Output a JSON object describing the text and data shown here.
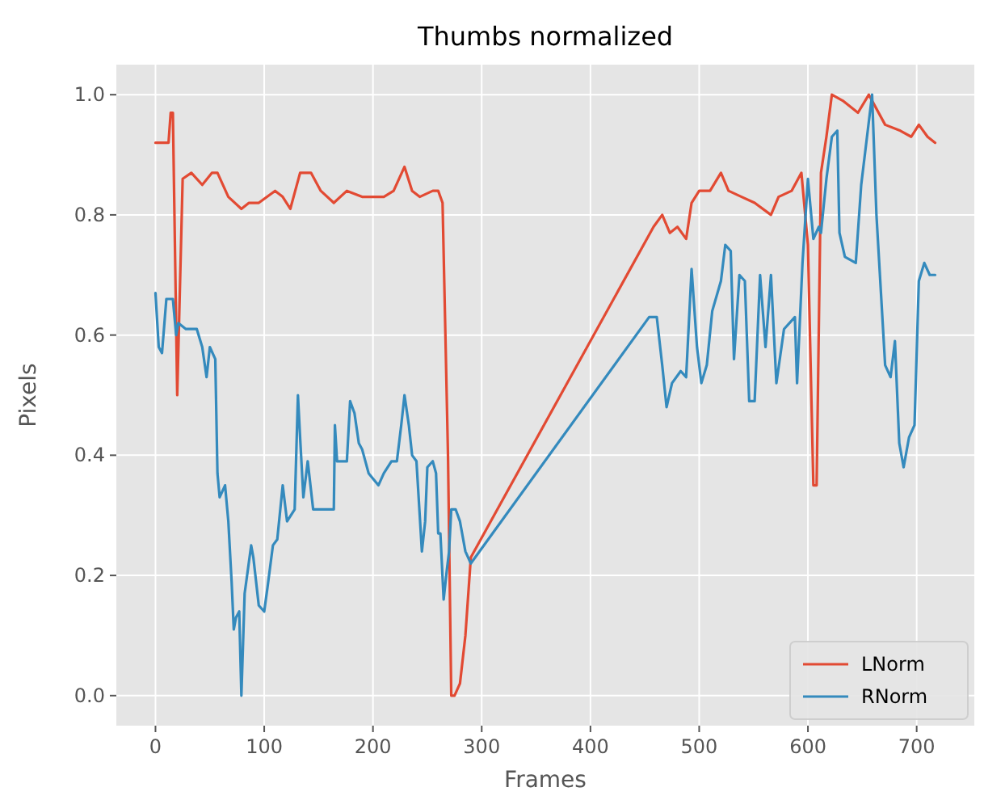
{
  "chart_data": {
    "type": "line",
    "title": "Thumbs normalized",
    "xlabel": "Frames",
    "ylabel": "Pixels",
    "xlim": [
      -36,
      753
    ],
    "ylim": [
      -0.05,
      1.05
    ],
    "xticks": [
      0,
      100,
      200,
      300,
      400,
      500,
      600,
      700
    ],
    "yticks": [
      {
        "value": 0,
        "label": "0.0"
      },
      {
        "value": 0.2,
        "label": "0.2"
      },
      {
        "value": 0.4,
        "label": "0.4"
      },
      {
        "value": 0.6,
        "label": "0.6"
      },
      {
        "value": 0.8,
        "label": "0.8"
      },
      {
        "value": 1,
        "label": "1.0"
      }
    ],
    "grid": true,
    "legend": "bottom right",
    "line_style": "solid",
    "marker": "none",
    "series": [
      {
        "name": "LNorm",
        "color": "#e24a33",
        "x": [
          0,
          12,
          14,
          16,
          20,
          25,
          33,
          43,
          52,
          57,
          67,
          79,
          86,
          95,
          110,
          117,
          124,
          133,
          143,
          152,
          164,
          176,
          190,
          210,
          219,
          229,
          236,
          243,
          255,
          260,
          264,
          269,
          272,
          275,
          280,
          285,
          290,
          458,
          466,
          473,
          480,
          488,
          493,
          500,
          510,
          520,
          527,
          539,
          551,
          566,
          573,
          585,
          594,
          600,
          605,
          608,
          612,
          617,
          622,
          632,
          646,
          656,
          671,
          685,
          695,
          702,
          710,
          717
        ],
        "values": [
          0.92,
          0.92,
          0.97,
          0.97,
          0.5,
          0.86,
          0.87,
          0.85,
          0.87,
          0.87,
          0.83,
          0.81,
          0.82,
          0.82,
          0.84,
          0.83,
          0.81,
          0.87,
          0.87,
          0.84,
          0.82,
          0.84,
          0.83,
          0.83,
          0.84,
          0.88,
          0.84,
          0.83,
          0.84,
          0.84,
          0.82,
          0.4,
          0,
          0,
          0.02,
          0.1,
          0.23,
          0.78,
          0.8,
          0.77,
          0.78,
          0.76,
          0.82,
          0.84,
          0.84,
          0.87,
          0.84,
          0.83,
          0.82,
          0.8,
          0.83,
          0.84,
          0.87,
          0.75,
          0.35,
          0.35,
          0.87,
          0.93,
          1,
          0.99,
          0.97,
          1,
          0.95,
          0.94,
          0.93,
          0.95,
          0.93,
          0.92
        ]
      },
      {
        "name": "RNorm",
        "color": "#348abd",
        "x": [
          0,
          3,
          6,
          10,
          16,
          19,
          21,
          28,
          38,
          43,
          47,
          50,
          55,
          57,
          59,
          64,
          67,
          70,
          72,
          74,
          77,
          79,
          82,
          88,
          90,
          95,
          100,
          103,
          108,
          112,
          117,
          121,
          128,
          131,
          133,
          136,
          140,
          145,
          155,
          164,
          165,
          167,
          176,
          179,
          183,
          187,
          190,
          196,
          205,
          210,
          217,
          222,
          226,
          229,
          233,
          236,
          240,
          243,
          245,
          248,
          250,
          255,
          258,
          260,
          262,
          265,
          268,
          270,
          272,
          276,
          280,
          285,
          290,
          454,
          461,
          466,
          470,
          475,
          483,
          488,
          493,
          498,
          502,
          507,
          512,
          520,
          524,
          529,
          532,
          537,
          542,
          546,
          551,
          556,
          561,
          566,
          571,
          578,
          588,
          590,
          595,
          600,
          605,
          610,
          612,
          617,
          622,
          627,
          629,
          634,
          644,
          649,
          659,
          663,
          671,
          676,
          680,
          684,
          688,
          693,
          698,
          702,
          707,
          712,
          717
        ],
        "values": [
          0.67,
          0.58,
          0.57,
          0.66,
          0.66,
          0.6,
          0.62,
          0.61,
          0.61,
          0.58,
          0.53,
          0.58,
          0.56,
          0.37,
          0.33,
          0.35,
          0.29,
          0.19,
          0.11,
          0.13,
          0.14,
          0,
          0.17,
          0.25,
          0.23,
          0.15,
          0.14,
          0.18,
          0.25,
          0.26,
          0.35,
          0.29,
          0.31,
          0.5,
          0.43,
          0.33,
          0.39,
          0.31,
          0.31,
          0.31,
          0.45,
          0.39,
          0.39,
          0.49,
          0.47,
          0.42,
          0.41,
          0.37,
          0.35,
          0.37,
          0.39,
          0.39,
          0.45,
          0.5,
          0.45,
          0.4,
          0.39,
          0.3,
          0.24,
          0.29,
          0.38,
          0.39,
          0.37,
          0.27,
          0.27,
          0.16,
          0.21,
          0.24,
          0.31,
          0.31,
          0.29,
          0.24,
          0.22,
          0.63,
          0.63,
          0.55,
          0.48,
          0.52,
          0.54,
          0.53,
          0.71,
          0.58,
          0.52,
          0.55,
          0.64,
          0.69,
          0.75,
          0.74,
          0.56,
          0.7,
          0.69,
          0.49,
          0.49,
          0.7,
          0.58,
          0.7,
          0.52,
          0.61,
          0.63,
          0.52,
          0.72,
          0.86,
          0.76,
          0.78,
          0.77,
          0.86,
          0.93,
          0.94,
          0.77,
          0.73,
          0.72,
          0.85,
          1,
          0.8,
          0.55,
          0.53,
          0.59,
          0.42,
          0.38,
          0.43,
          0.45,
          0.69,
          0.72,
          0.7,
          0.7
        ]
      }
    ]
  }
}
